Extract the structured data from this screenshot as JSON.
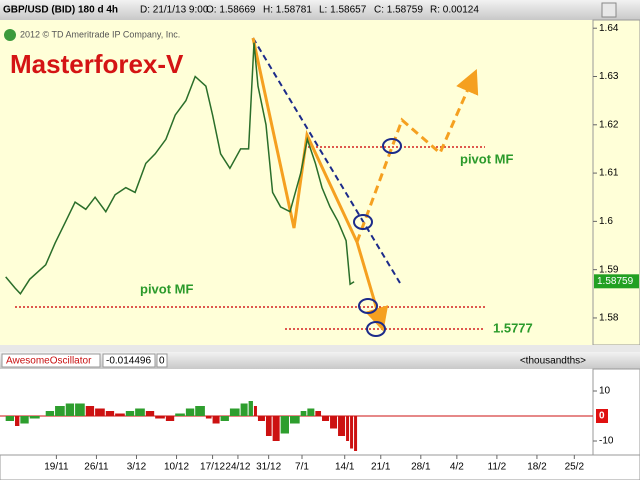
{
  "header": {
    "symbol": "GBP/USD (BID) 180 d 4h",
    "date": "D: 21/1/13 9:00",
    "open": "O: 1.58669",
    "high": "H: 1.58781",
    "low": "L: 1.58657",
    "close": "C: 1.58759",
    "range": "R: 0.00124"
  },
  "chart_data": [
    {
      "type": "line",
      "title": "Masterforex-V",
      "subtitle": "2012 © TD Ameritrade IP Company, Inc.",
      "annotations": [
        "pivot MF",
        "pivot MF",
        "1.5777"
      ],
      "x": [
        2,
        9,
        13,
        20,
        32,
        39,
        47,
        54,
        62,
        69,
        77,
        84,
        92,
        99,
        107,
        114,
        122,
        129,
        137,
        144,
        152,
        157,
        163,
        170,
        178,
        184,
        188,
        191,
        197,
        202,
        208,
        215,
        223,
        228,
        234,
        239,
        245,
        251,
        257,
        260,
        263
      ],
      "values": [
        1.5885,
        1.5862,
        1.585,
        1.588,
        1.591,
        1.5955,
        1.6,
        1.604,
        1.6025,
        1.605,
        1.602,
        1.6055,
        1.607,
        1.606,
        1.612,
        1.614,
        1.617,
        1.622,
        1.625,
        1.63,
        1.628,
        1.622,
        1.614,
        1.611,
        1.615,
        1.615,
        1.637,
        1.628,
        1.62,
        1.606,
        1.603,
        1.602,
        1.61,
        1.617,
        1.612,
        1.607,
        1.603,
        1.6,
        1.596,
        1.587,
        1.5875
      ],
      "color": "#2a6e2a",
      "last_price": {
        "value": 1.58759,
        "label": "1.58759"
      },
      "xlim": [
        0,
        442
      ],
      "xticks": [
        {
          "value": 40,
          "label": "19/11"
        },
        {
          "value": 70,
          "label": "26/11"
        },
        {
          "value": 100,
          "label": "3/12"
        },
        {
          "value": 130,
          "label": "10/12"
        },
        {
          "value": 157,
          "label": "17/12"
        },
        {
          "value": 176,
          "label": "24/12"
        },
        {
          "value": 199,
          "label": "31/12"
        },
        {
          "value": 224,
          "label": "7/1"
        },
        {
          "value": 256,
          "label": "14/1"
        },
        {
          "value": 283,
          "label": "21/1"
        },
        {
          "value": 313,
          "label": "28/1"
        },
        {
          "value": 340,
          "label": "4/2"
        },
        {
          "value": 370,
          "label": "11/2"
        },
        {
          "value": 400,
          "label": "18/2"
        },
        {
          "value": 428,
          "label": "25/2"
        }
      ],
      "ylim": [
        1.5744,
        1.6417
      ],
      "yticks": [
        1.58,
        1.59,
        1.6,
        1.61,
        1.62,
        1.63,
        1.64
      ]
    },
    {
      "type": "bar",
      "title": "AwesomeOscillator",
      "current_value": "-0.014496",
      "current_index": "0",
      "units": "<thousandths>",
      "x": [
        2,
        9,
        13,
        20,
        32,
        39,
        47,
        54,
        62,
        69,
        77,
        84,
        92,
        99,
        107,
        114,
        122,
        129,
        137,
        144,
        152,
        157,
        163,
        170,
        178,
        184,
        188,
        191,
        197,
        202,
        208,
        215,
        223,
        228,
        234,
        239,
        245,
        251,
        257,
        260,
        263
      ],
      "values": [
        -2,
        -4,
        -3,
        -1,
        2,
        4,
        5,
        5,
        4,
        3,
        2,
        1,
        2,
        3,
        2,
        -1,
        -2,
        1,
        3,
        4,
        -1,
        -3,
        -2,
        3,
        5,
        6,
        4,
        -2,
        -8,
        -10,
        -7,
        -3,
        2,
        3,
        2,
        -2,
        -5,
        -8,
        -10,
        -13,
        -14
      ],
      "up_color": "#2e9e2e",
      "down_color": "#cc1111",
      "xlim": [
        0,
        442
      ],
      "ylim": [
        -15.6,
        18.4
      ],
      "yticks": [
        -10,
        0,
        10
      ]
    }
  ]
}
